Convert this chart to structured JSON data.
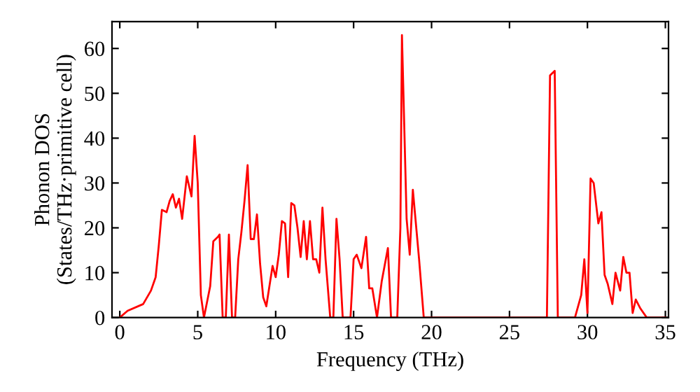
{
  "chart_data": {
    "type": "line",
    "xlabel": "Frequency (THz)",
    "ylabel": "Phonon DOS\n(States/THz·primitive cell)",
    "xlim": [
      -0.5,
      35.2
    ],
    "ylim": [
      0,
      66
    ],
    "xticks": [
      0,
      5,
      10,
      15,
      20,
      25,
      30,
      35
    ],
    "yticks": [
      0,
      10,
      20,
      30,
      40,
      50,
      60
    ],
    "grid": false,
    "legend": false,
    "series": [
      {
        "color": "#ff0000",
        "x": [
          0,
          0.5,
          1.5,
          2.0,
          2.3,
          2.5,
          2.7,
          3.0,
          3.2,
          3.4,
          3.6,
          3.8,
          4.0,
          4.3,
          4.6,
          4.8,
          5.0,
          5.2,
          5.4,
          5.8,
          6.0,
          6.3,
          6.4,
          6.6,
          6.8,
          7.0,
          7.2,
          7.4,
          7.6,
          7.8,
          8.0,
          8.2,
          8.4,
          8.6,
          8.8,
          9.0,
          9.2,
          9.4,
          9.6,
          9.8,
          10.0,
          10.2,
          10.4,
          10.6,
          10.8,
          11.0,
          11.2,
          11.4,
          11.6,
          11.8,
          12.0,
          12.2,
          12.4,
          12.6,
          12.8,
          13.0,
          13.2,
          13.5,
          13.7,
          13.9,
          14.1,
          14.3,
          14.6,
          14.8,
          15.0,
          15.2,
          15.5,
          15.8,
          16.0,
          16.2,
          16.5,
          16.8,
          17.2,
          17.4,
          17.8,
          18.0,
          18.1,
          18.4,
          18.6,
          18.8,
          19.2,
          19.5,
          20,
          27.4,
          27.6,
          27.9,
          28.1,
          29.2,
          29.6,
          29.8,
          30.0,
          30.2,
          30.4,
          30.7,
          30.9,
          31.1,
          31.3,
          31.6,
          31.8,
          32.1,
          32.3,
          32.5,
          32.7,
          32.9,
          33.1,
          33.4,
          33.8,
          35
        ],
        "values": [
          0,
          1.5,
          3,
          6,
          9,
          16,
          24,
          23.5,
          26,
          27.5,
          24.5,
          26.5,
          22,
          31.5,
          27,
          40.5,
          30,
          5,
          0,
          7,
          17,
          18,
          18.5,
          0,
          0,
          18.5,
          0,
          0,
          13,
          19,
          26,
          34,
          17.5,
          17.5,
          23,
          12,
          4.5,
          2.5,
          7,
          11.5,
          9,
          14,
          21.5,
          21,
          9,
          25.5,
          25,
          20,
          13.5,
          21.5,
          13,
          21.5,
          13,
          13,
          10,
          24.5,
          13,
          0,
          0,
          22,
          13,
          0,
          0,
          0,
          13,
          14,
          11,
          18,
          6.5,
          6.5,
          0,
          8,
          15.5,
          0,
          0,
          20,
          63,
          22,
          14,
          28.5,
          13,
          0,
          0,
          0,
          54,
          55,
          0,
          0,
          5,
          13,
          1,
          31,
          30,
          21,
          23.5,
          9.5,
          7.5,
          3,
          10,
          6,
          13.5,
          10,
          10,
          1,
          4,
          2,
          0,
          0
        ]
      }
    ]
  }
}
